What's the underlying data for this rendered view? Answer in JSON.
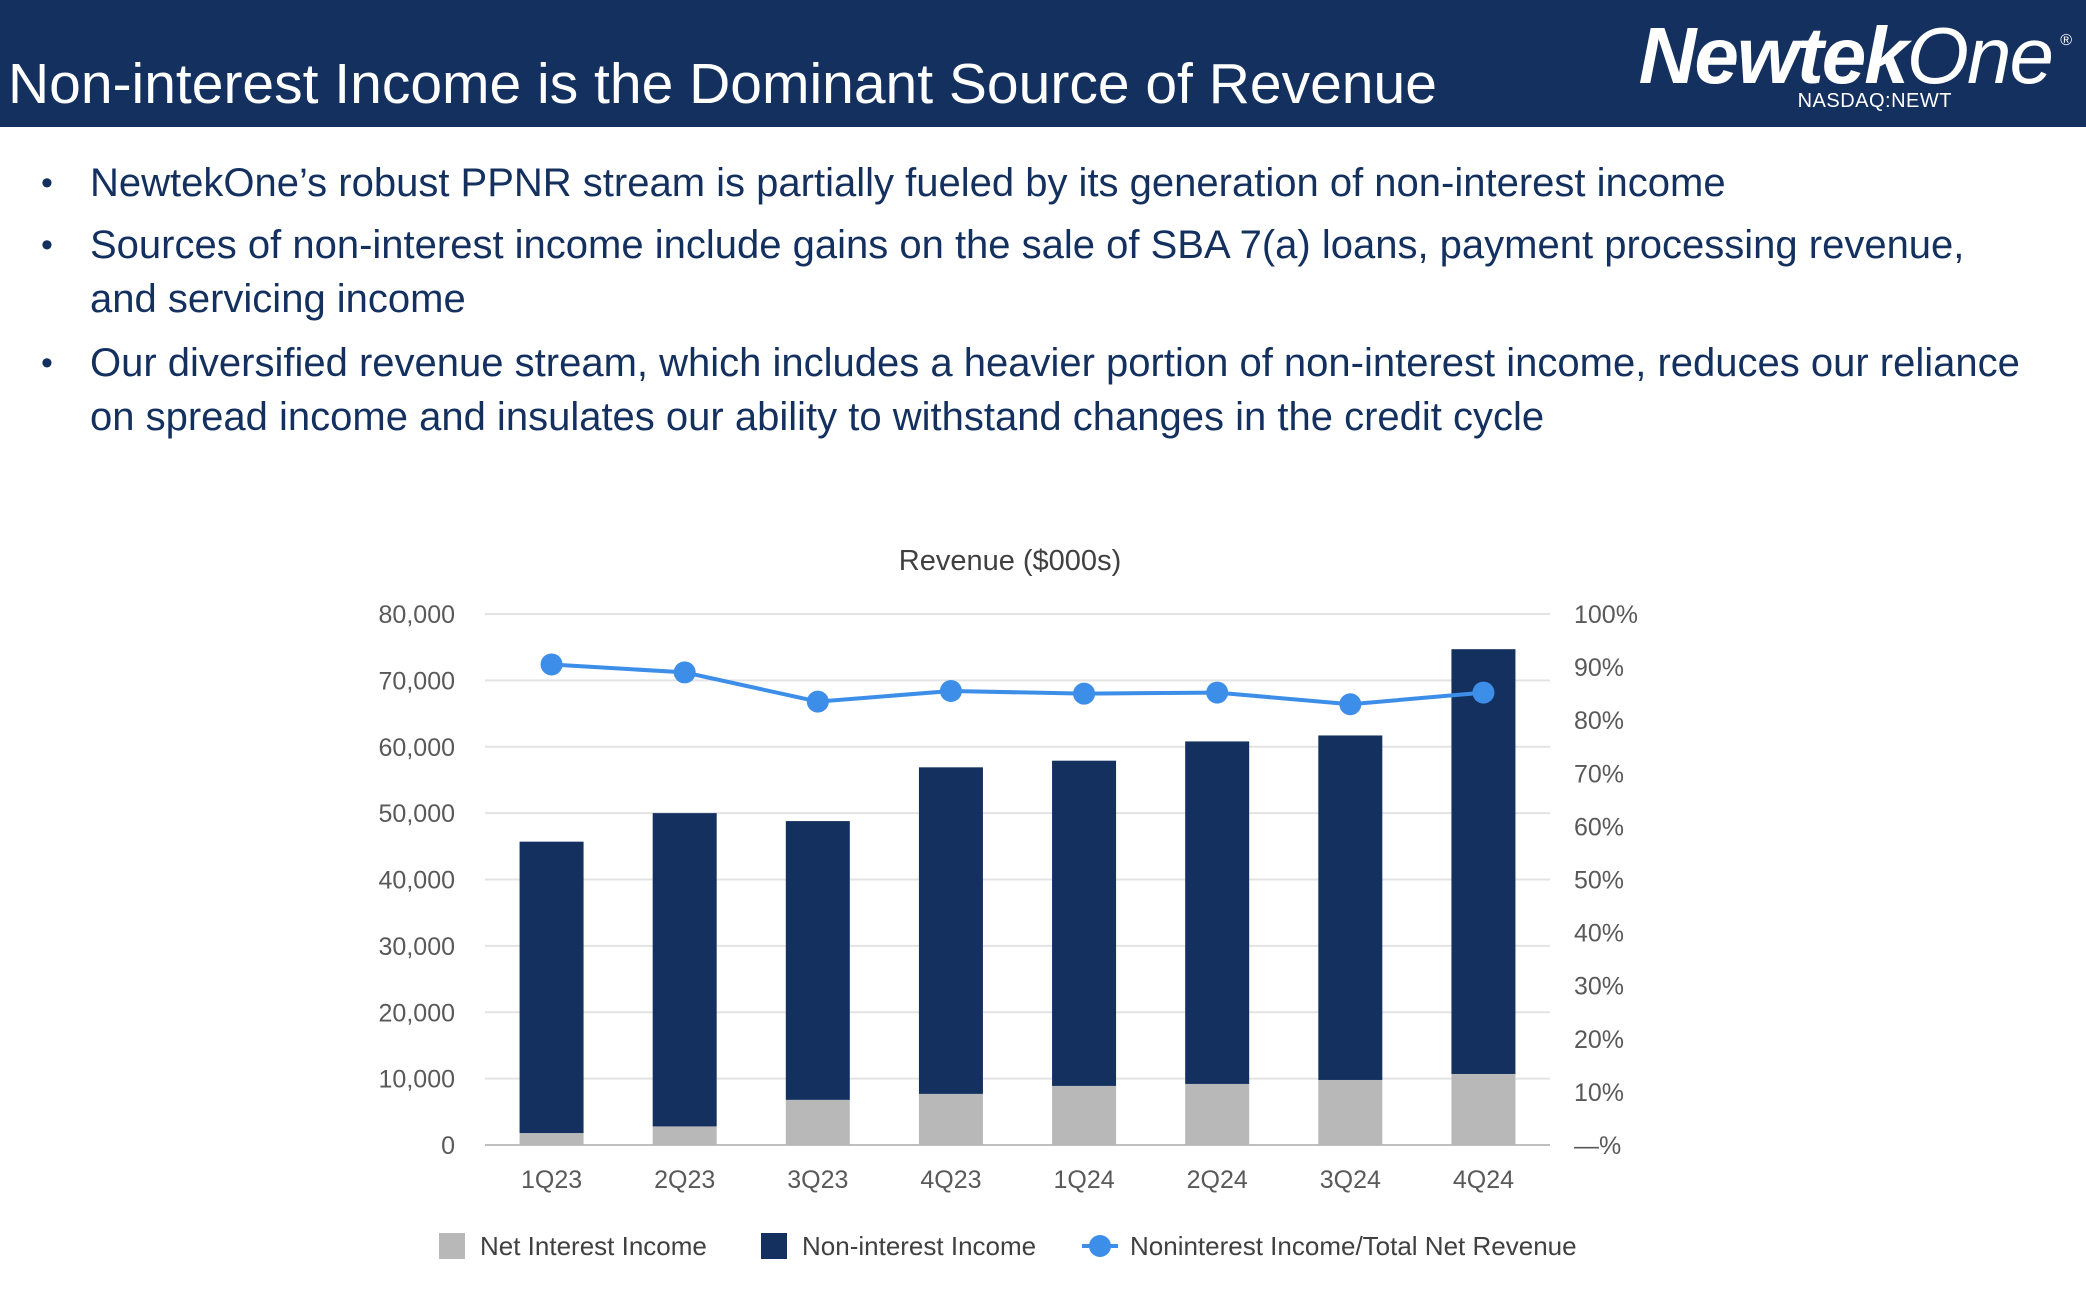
{
  "header": {
    "title": "Non-interest Income is the Dominant Source of Revenue",
    "logo_bold": "Newtek",
    "logo_light": "One",
    "logo_mark": "®",
    "ticker": "NASDAQ:NEWT"
  },
  "bullets": [
    "NewtekOne’s robust PPNR stream is partially fueled by its generation of non-interest income",
    "Sources of non-interest income include gains on the sale of SBA 7(a) loans, payment processing revenue, and servicing income",
    "Our diversified revenue stream, which includes a heavier portion of non-interest income, reduces our reliance on spread income and insulates our ability to withstand changes in the credit cycle"
  ],
  "bullet_symbol": "•",
  "colors": {
    "header_bg": "#13305f",
    "net_interest": "#b8b8b8",
    "non_interest": "#13305f",
    "ratio_line": "#3d8ee8",
    "text_blue": "#13305f",
    "axis_text": "#595959"
  },
  "chart_data": {
    "type": "bar",
    "stacked": true,
    "title": "Revenue ($000s)",
    "categories": [
      "1Q23",
      "2Q23",
      "3Q23",
      "4Q23",
      "1Q24",
      "2Q24",
      "3Q24",
      "4Q24"
    ],
    "series": [
      {
        "name": "Net Interest Income",
        "type": "bar",
        "axis": "left",
        "values": [
          1800,
          2800,
          6800,
          7700,
          8900,
          9200,
          9800,
          10700
        ]
      },
      {
        "name": "Non-interest Income",
        "type": "bar",
        "axis": "left",
        "values": [
          43900,
          47200,
          42000,
          49200,
          49000,
          51600,
          51900,
          64000
        ]
      },
      {
        "name": "Noninterest Income/Total Net Revenue",
        "type": "line",
        "axis": "right",
        "values": [
          0.905,
          0.89,
          0.835,
          0.855,
          0.85,
          0.852,
          0.83,
          0.852
        ]
      }
    ],
    "ylim": [
      0,
      80000
    ],
    "y_ticks": [
      "0",
      "10,000",
      "20,000",
      "30,000",
      "40,000",
      "50,000",
      "60,000",
      "70,000",
      "80,000"
    ],
    "y2lim": [
      0,
      1
    ],
    "y2_ticks": [
      "—%",
      "10%",
      "20%",
      "30%",
      "40%",
      "50%",
      "60%",
      "70%",
      "80%",
      "90%",
      "100%"
    ],
    "grid": true,
    "legend_position": "bottom"
  }
}
